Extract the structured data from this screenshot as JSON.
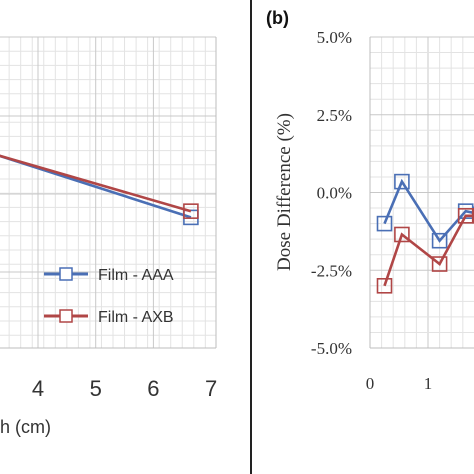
{
  "chart_data": [
    {
      "type": "line",
      "panel": "a",
      "xlabel": "h (cm)",
      "x_ticks": [
        "4",
        "5",
        "6",
        "7"
      ],
      "xlim": [
        3.3,
        7
      ],
      "ylim": [
        0,
        1
      ],
      "grid": true,
      "legend_position": "bottom-right",
      "series": [
        {
          "name": "Film - AAA",
          "color": "#4a6fb5",
          "marker": "square",
          "x": [
            3.3,
            6.65
          ],
          "y": [
            0.62,
            0.42
          ]
        },
        {
          "name": "Film - AXB",
          "color": "#b04646",
          "marker": "square",
          "x": [
            3.3,
            6.65
          ],
          "y": [
            0.62,
            0.44
          ]
        }
      ]
    },
    {
      "type": "line",
      "panel": "b",
      "panel_label": "(b)",
      "ylabel": "Dose Difference (%)",
      "y_ticks": [
        "5.0%",
        "2.5%",
        "0.0%",
        "-2.5%",
        "-5.0%"
      ],
      "x_ticks": [
        "0",
        "1"
      ],
      "ylim": [
        -5.0,
        5.0
      ],
      "xlim": [
        0,
        1.7
      ],
      "grid": true,
      "series": [
        {
          "name": "",
          "color": "#4a6fb5",
          "marker": "square",
          "x": [
            0.25,
            0.55,
            1.2,
            1.65,
            1.9
          ],
          "y": [
            -1.0,
            0.35,
            -1.55,
            -0.6,
            -0.7
          ]
        },
        {
          "name": "",
          "color": "#b04646",
          "marker": "square",
          "x": [
            0.25,
            0.55,
            1.2,
            1.65,
            1.9
          ],
          "y": [
            -3.0,
            -1.35,
            -2.3,
            -0.75,
            -0.75
          ]
        }
      ]
    }
  ]
}
